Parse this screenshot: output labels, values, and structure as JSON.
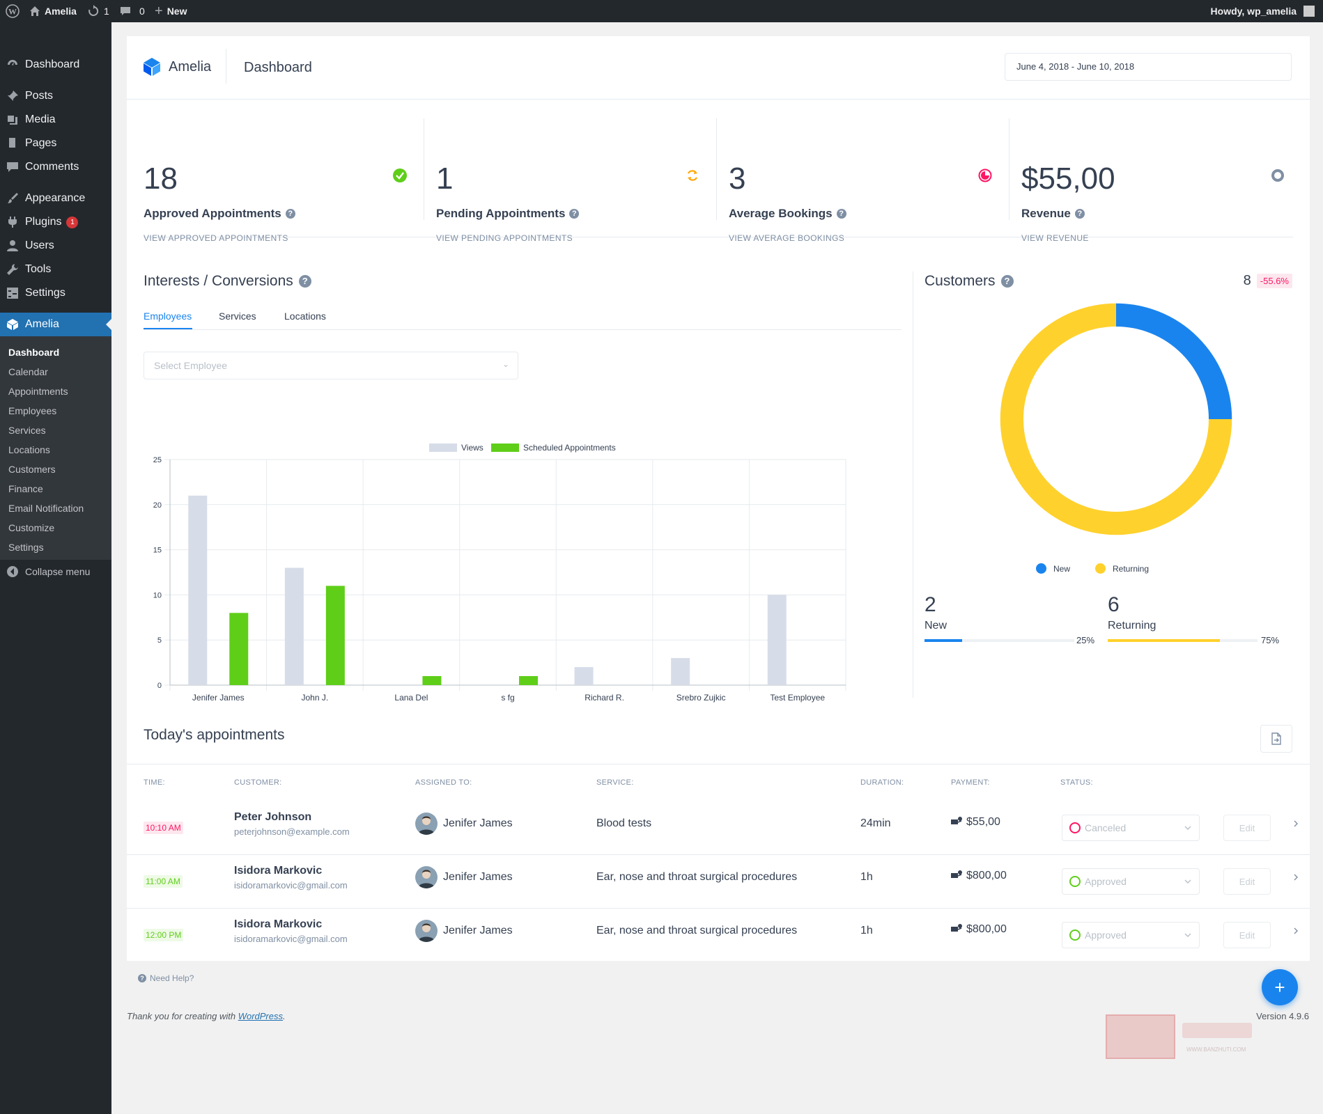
{
  "admin_bar": {
    "site_name": "Amelia",
    "updates_count": "1",
    "comments_count": "0",
    "new_label": "New",
    "greeting": "Howdy, wp_amelia"
  },
  "sidebar": {
    "items": [
      {
        "label": "Dashboard",
        "icon": "dashboard-icon"
      },
      {
        "label": "Posts",
        "icon": "pin-icon"
      },
      {
        "label": "Media",
        "icon": "media-icon"
      },
      {
        "label": "Pages",
        "icon": "pages-icon"
      },
      {
        "label": "Comments",
        "icon": "comment-icon"
      },
      {
        "label": "Appearance",
        "icon": "brush-icon"
      },
      {
        "label": "Plugins",
        "icon": "plugin-icon",
        "badge": "1"
      },
      {
        "label": "Users",
        "icon": "user-icon"
      },
      {
        "label": "Tools",
        "icon": "wrench-icon"
      },
      {
        "label": "Settings",
        "icon": "settings-icon"
      },
      {
        "label": "Amelia",
        "icon": "amelia-icon",
        "active": true
      }
    ],
    "submenu": [
      "Dashboard",
      "Calendar",
      "Appointments",
      "Employees",
      "Services",
      "Locations",
      "Customers",
      "Finance",
      "Email Notification",
      "Customize",
      "Settings"
    ],
    "collapse_label": "Collapse menu"
  },
  "header": {
    "brand": "Amelia",
    "page_title": "Dashboard",
    "date_range": "June 4, 2018 - June 10, 2018"
  },
  "stats": [
    {
      "value": "18",
      "label": "Approved Appointments",
      "link": "VIEW APPROVED APPOINTMENTS",
      "icon": "check-circle-icon",
      "color": "#5fce19"
    },
    {
      "value": "1",
      "label": "Pending Appointments",
      "link": "VIEW PENDING APPOINTMENTS",
      "icon": "refresh-icon",
      "color": "#ffa700"
    },
    {
      "value": "3",
      "label": "Average Bookings",
      "link": "VIEW AVERAGE BOOKINGS",
      "icon": "pie-icon",
      "color": "#ff1563"
    },
    {
      "value": "$55,00",
      "label": "Revenue",
      "link": "VIEW REVENUE",
      "icon": "donut-icon",
      "color": "#7f8fa4"
    }
  ],
  "interests": {
    "title": "Interests / Conversions",
    "tabs": [
      "Employees",
      "Services",
      "Locations"
    ],
    "active_tab": "Employees",
    "select_placeholder": "Select Employee"
  },
  "chart_data": {
    "type": "bar",
    "categories": [
      "Jenifer James",
      "John J.",
      "Lana Del",
      "s fg",
      "Richard  R.",
      "Srebro Zujkic",
      "Test Employee"
    ],
    "series": [
      {
        "name": "Views",
        "values": [
          21,
          13,
          0,
          0,
          2,
          3,
          10
        ],
        "color": "#d6dde8"
      },
      {
        "name": "Scheduled Appointments",
        "values": [
          8,
          11,
          1,
          1,
          0,
          0,
          0
        ],
        "color": "#5fce19"
      }
    ],
    "ylim": [
      0,
      25
    ],
    "yticks": [
      "0",
      "5",
      "10",
      "15",
      "20",
      "25"
    ],
    "grid": true,
    "legend": "top-center"
  },
  "customers": {
    "title": "Customers",
    "total": "8",
    "change": "-55.6%",
    "chart_data": {
      "type": "pie",
      "labels": [
        "New",
        "Returning"
      ],
      "values": [
        2,
        6
      ],
      "colors": [
        "#1a84ee",
        "#ffd12d"
      ]
    },
    "new_count": "2",
    "new_label": "New",
    "new_pct": "25%",
    "new_fraction": 0.25,
    "returning_count": "6",
    "returning_label": "Returning",
    "returning_pct": "75%",
    "returning_fraction": 0.75
  },
  "appointments": {
    "title": "Today's appointments",
    "columns": [
      "TIME:",
      "CUSTOMER:",
      "ASSIGNED TO:",
      "SERVICE:",
      "DURATION:",
      "PAYMENT:",
      "STATUS:"
    ],
    "rows": [
      {
        "time": "10:10 AM",
        "time_color": "#ff1563",
        "time_bg": "#fde7ee",
        "customer": "Peter Johnson",
        "email": "peterjohnson@example.com",
        "employee": "Jenifer James",
        "service": "Blood tests",
        "duration": "24min",
        "payment": "$55,00",
        "status": "Canceled",
        "status_color": "#ff1563",
        "edit": "Edit"
      },
      {
        "time": "11:00 AM",
        "time_color": "#5fce19",
        "time_bg": "#eefae6",
        "customer": "Isidora Markovic",
        "email": "isidoramarkovic@gmail.com",
        "employee": "Jenifer James",
        "service": "Ear, nose and throat surgical procedures",
        "duration": "1h",
        "payment": "$800,00",
        "status": "Approved",
        "status_color": "#5fce19",
        "edit": "Edit"
      },
      {
        "time": "12:00 PM",
        "time_color": "#5fce19",
        "time_bg": "#eefae6",
        "customer": "Isidora Markovic",
        "email": "isidoramarkovic@gmail.com",
        "employee": "Jenifer James",
        "service": "Ear, nose and throat surgical procedures",
        "duration": "1h",
        "payment": "$800,00",
        "status": "Approved",
        "status_color": "#5fce19",
        "edit": "Edit"
      }
    ]
  },
  "footer": {
    "help": "Need Help?",
    "thanks_prefix": "Thank you for creating with ",
    "wp_link": "WordPress",
    "thanks_suffix": ".",
    "version": "Version 4.9.6"
  },
  "watermark": {
    "text": "WWW.BANZHUTI.COM"
  }
}
